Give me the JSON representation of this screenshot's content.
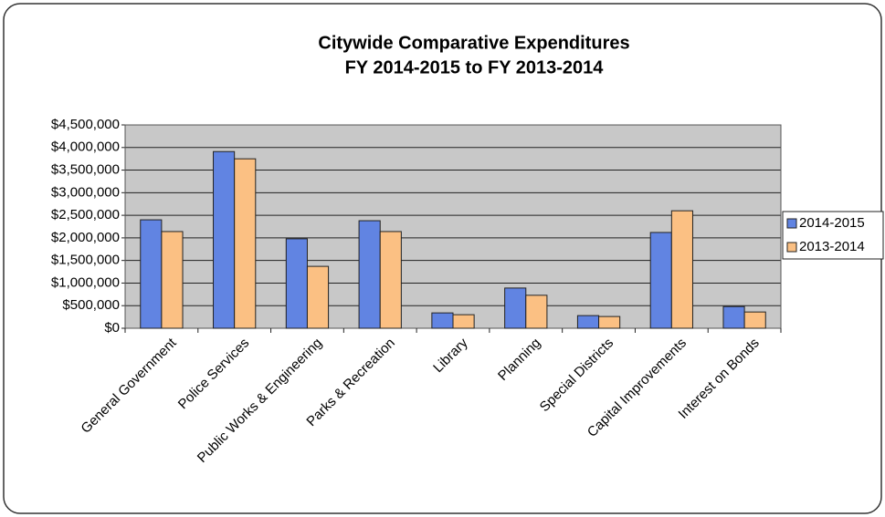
{
  "chart_data": {
    "type": "bar",
    "title": "Citywide Comparative Expenditures",
    "subtitle": "FY 2014-2015 to FY 2013-2014",
    "categories": [
      "General Government",
      "Police Services",
      "Public Works & Engineering",
      "Parks & Recreation",
      "Library",
      "Planning",
      "Special Districts",
      "Capital Improvements",
      "Interest on Bonds"
    ],
    "series": [
      {
        "name": "2014-2015",
        "color": "#6184e2",
        "values": [
          2400000,
          3910000,
          1980000,
          2380000,
          340000,
          890000,
          280000,
          2120000,
          480000
        ]
      },
      {
        "name": "2013-2014",
        "color": "#fbc083",
        "values": [
          2140000,
          3750000,
          1370000,
          2140000,
          300000,
          730000,
          260000,
          2600000,
          360000
        ]
      }
    ],
    "ylim": [
      0,
      4500000
    ],
    "yticks": [
      {
        "value": 0,
        "label": "$0"
      },
      {
        "value": 500000,
        "label": "$500,000"
      },
      {
        "value": 1000000,
        "label": "$1,000,000"
      },
      {
        "value": 1500000,
        "label": "$1,500,000"
      },
      {
        "value": 2000000,
        "label": "$2,000,000"
      },
      {
        "value": 2500000,
        "label": "$2,500,000"
      },
      {
        "value": 3000000,
        "label": "$3,000,000"
      },
      {
        "value": 3500000,
        "label": "$3,500,000"
      },
      {
        "value": 4000000,
        "label": "$4,000,000"
      },
      {
        "value": 4500000,
        "label": "$4,500,000"
      }
    ],
    "grid": true,
    "legend": "right"
  }
}
